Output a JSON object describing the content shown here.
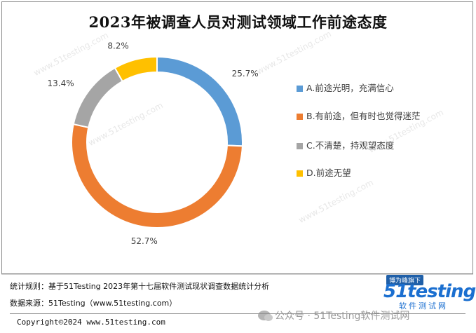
{
  "chart_data": {
    "type": "pie",
    "subtype": "donut",
    "title": "2023年被调查人员对测试领域工作前途态度",
    "categories": [
      "A.前途光明，充满信心",
      "B.有前途，但有时也觉得迷茫",
      "C.不清楚，持观望态度",
      "D.前途无望"
    ],
    "values": [
      25.7,
      52.7,
      13.4,
      8.2
    ],
    "labels": [
      "25.7%",
      "52.7%",
      "13.4%",
      "8.2%"
    ],
    "colors": [
      "#5b9bd5",
      "#ed7d31",
      "#a5a5a5",
      "#ffc000"
    ],
    "legend_position": "right"
  },
  "watermark_text": "www.51testing.com",
  "footer": {
    "stats_rule": "统计规则：基于51Testing 2023年第十七届软件测试现状调查数据统计分析",
    "data_source": "数据来源：51Testing（www.51testing.com）",
    "copyright": "Copyright©2024 www.51testing.com"
  },
  "logo": {
    "badge": "博为峰旗下",
    "main": "51testing",
    "sub": "软件测试网"
  },
  "wechat": {
    "text": "公众号 · 51Testing软件测试网"
  }
}
